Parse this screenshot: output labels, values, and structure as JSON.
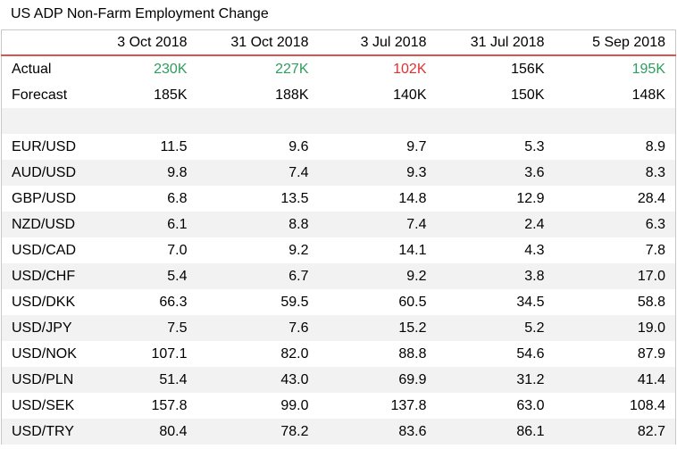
{
  "title": "US ADP Non-Farm Employment Change",
  "columns": [
    "",
    "3 Oct 2018",
    "31 Oct 2018",
    "3 Jul 2018",
    "31 Jul 2018",
    "5 Sep 2018"
  ],
  "actual": {
    "label": "Actual",
    "values": [
      "230K",
      "227K",
      "102K",
      "156K",
      "195K"
    ],
    "tones": [
      "up",
      "up",
      "down",
      "neutral",
      "up"
    ]
  },
  "forecast": {
    "label": "Forecast",
    "values": [
      "185K",
      "188K",
      "140K",
      "150K",
      "148K"
    ]
  },
  "pairs": [
    {
      "label": "EUR/USD",
      "values": [
        "11.5",
        "9.6",
        "9.7",
        "5.3",
        "8.9"
      ]
    },
    {
      "label": "AUD/USD",
      "values": [
        "9.8",
        "7.4",
        "9.3",
        "3.6",
        "8.3"
      ]
    },
    {
      "label": "GBP/USD",
      "values": [
        "6.8",
        "13.5",
        "14.8",
        "12.9",
        "28.4"
      ]
    },
    {
      "label": "NZD/USD",
      "values": [
        "6.1",
        "8.8",
        "7.4",
        "2.4",
        "6.3"
      ]
    },
    {
      "label": "USD/CAD",
      "values": [
        "7.0",
        "9.2",
        "14.1",
        "4.3",
        "7.8"
      ]
    },
    {
      "label": "USD/CHF",
      "values": [
        "5.4",
        "6.7",
        "9.2",
        "3.8",
        "17.0"
      ]
    },
    {
      "label": "USD/DKK",
      "values": [
        "66.3",
        "59.5",
        "60.5",
        "34.5",
        "58.8"
      ]
    },
    {
      "label": "USD/JPY",
      "values": [
        "7.5",
        "7.6",
        "15.2",
        "5.2",
        "19.0"
      ]
    },
    {
      "label": "USD/NOK",
      "values": [
        "107.1",
        "82.0",
        "88.8",
        "54.6",
        "87.9"
      ]
    },
    {
      "label": "USD/PLN",
      "values": [
        "51.4",
        "43.0",
        "69.9",
        "31.2",
        "41.4"
      ]
    },
    {
      "label": "USD/SEK",
      "values": [
        "157.8",
        "99.0",
        "137.8",
        "63.0",
        "108.4"
      ]
    },
    {
      "label": "USD/TRY",
      "values": [
        "80.4",
        "78.2",
        "83.6",
        "86.1",
        "82.7"
      ]
    }
  ],
  "colors": {
    "up": "#2e9e5b",
    "down": "#e03030",
    "header_rule": "#d9534f",
    "row_shade": "#f2f2f2"
  }
}
